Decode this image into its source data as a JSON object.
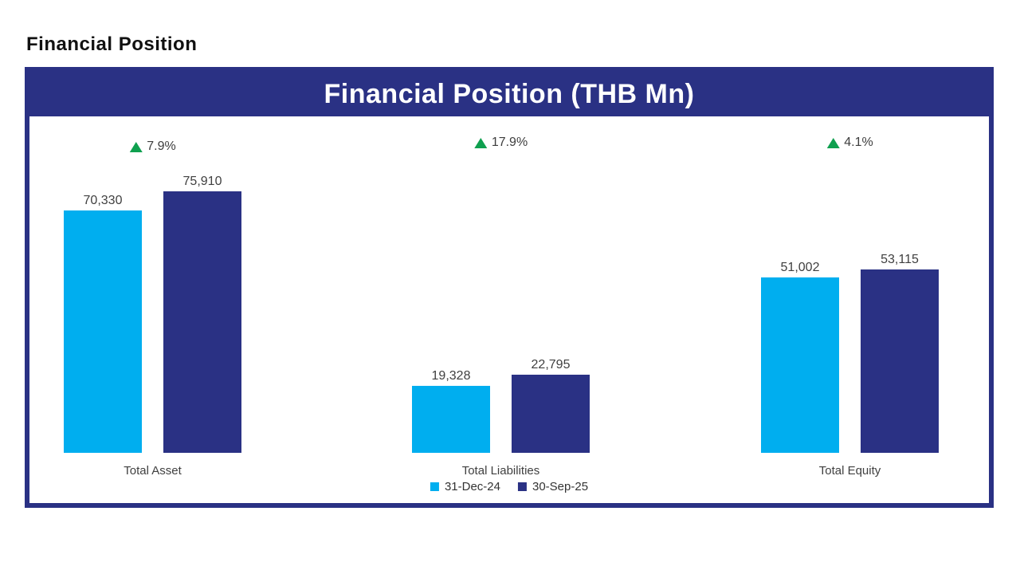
{
  "page": {
    "title": "Financial Position"
  },
  "colors": {
    "navy": "#2A3184",
    "light_blue": "#00AEEF",
    "green": "#0FA04F",
    "label_text": "#404040"
  },
  "chart_data": {
    "type": "bar",
    "title": "Financial Position (THB Mn)",
    "categories": [
      "Total Asset",
      "Total Liabilities",
      "Total Equity"
    ],
    "series": [
      {
        "name": "31-Dec-24",
        "color": "#00AEEF",
        "values": [
          70330,
          19328,
          51002
        ]
      },
      {
        "name": "30-Sep-25",
        "color": "#2A3184",
        "values": [
          75910,
          22795,
          53115
        ]
      }
    ],
    "value_labels": [
      [
        "70,330",
        "75,910"
      ],
      [
        "19,328",
        "22,795"
      ],
      [
        "51,002",
        "53,115"
      ]
    ],
    "change_labels": [
      "7.9%",
      "17.9%",
      "4.1%"
    ],
    "ylim": [
      0,
      75910
    ],
    "grid": false,
    "legend_position": "bottom"
  }
}
